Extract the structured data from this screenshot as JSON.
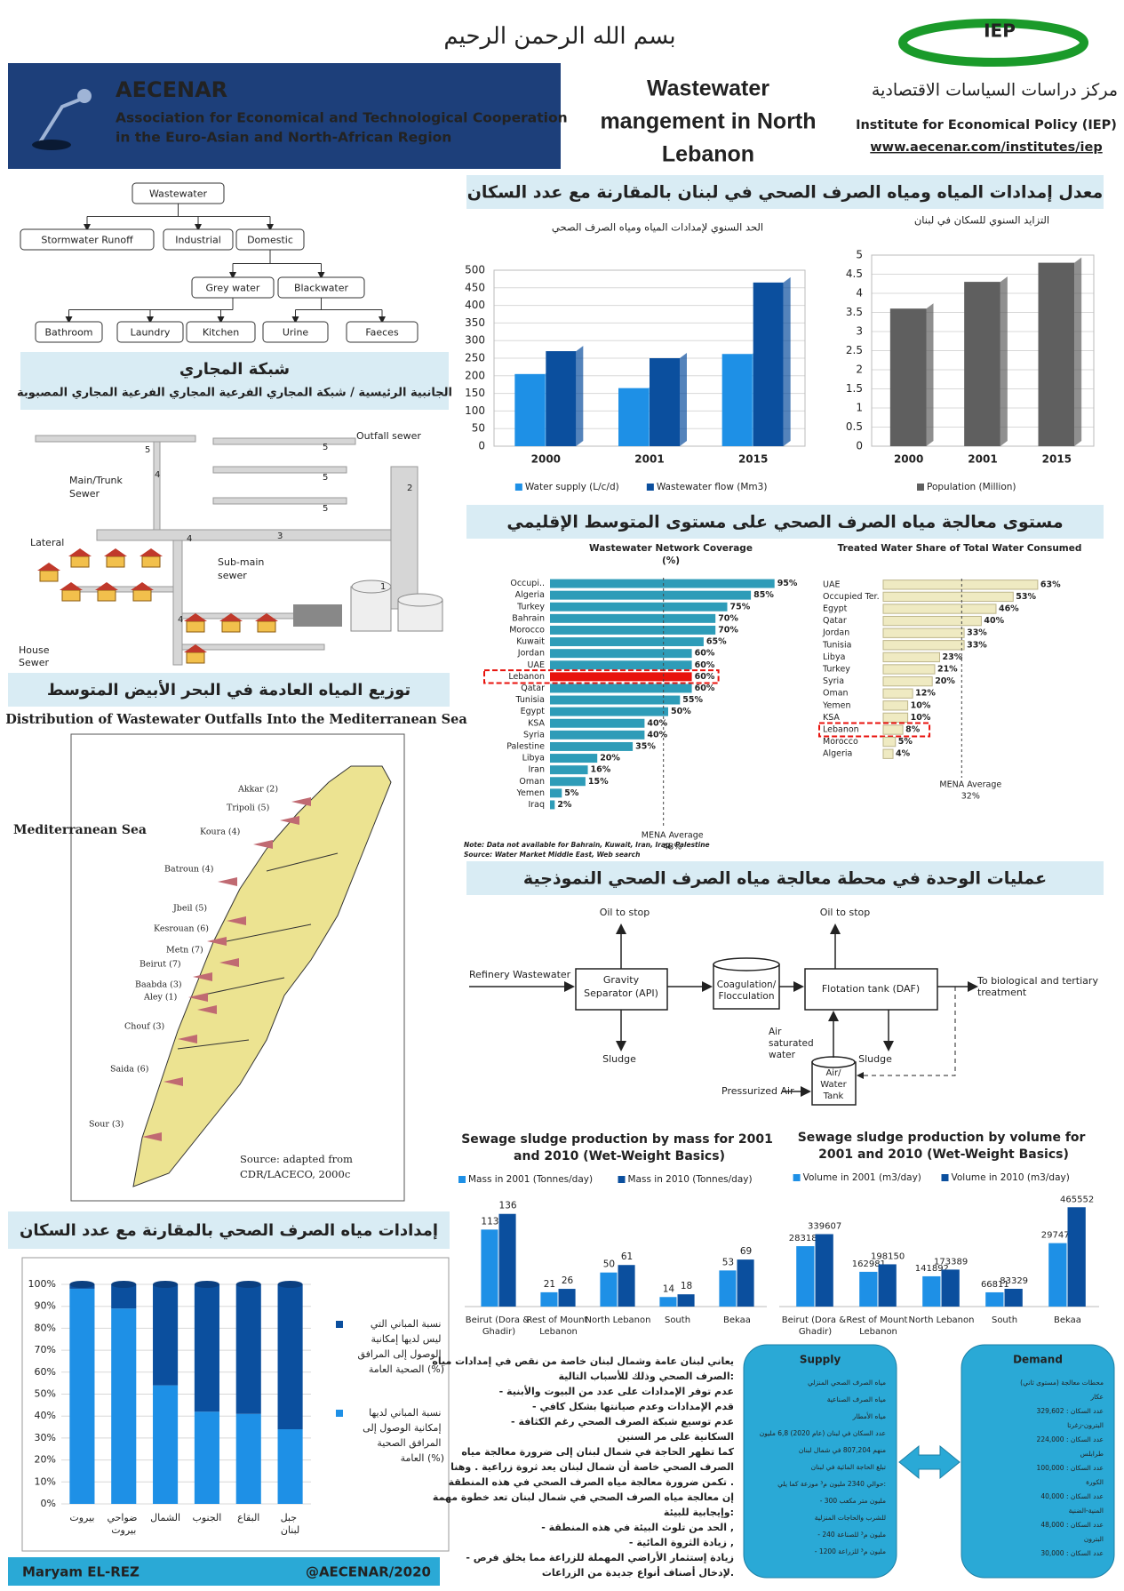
{
  "header": {
    "basmala": "بسم الله الرحمن الرحيم",
    "org_name": "AECENAR",
    "org_full": "Association for Economical and Technological Cooperation",
    "org_full2": "in the Euro-Asian and North-African Region",
    "title": [
      "Wastewater",
      "mangement in North",
      "Lebanon"
    ],
    "iep": "IEP",
    "iep_ar": "مركز دراسات السياسات الاقتصادية",
    "iep_en": "Institute for Economical Policy (IEP)",
    "url": "www.aecenar.com/institutes/iep"
  },
  "sections": {
    "supply_population": "معدل إمدادات المياه ومياه الصرف الصحي في لبنان بالمقارنة مع عدد السكان",
    "treatment_level": "مستوى معالجة مياه الصرف الصحي على مستوى المتوسط الإقليمي",
    "unit_processes": "عمليات الوحدة في محطة معالجة مياه الصرف الصحي النموذجية",
    "sewer_network": "شبكة المجاري",
    "sewer_network_sub": "الجانبية الرئيسية / شبكة المجاري الفرعية المجاري الفرعية المجاري المصبوبة",
    "distribution": "توزيع المياه العادمة في البحر الأبيض المتوسط",
    "access": "إمدادات مياه الصرف الصحي بالمقارنة مع عدد السكان"
  },
  "tree": {
    "nodes": [
      "Wastewater",
      "Stormwater Runoff",
      "Industrial",
      "Domestic",
      "Grey water",
      "Blackwater",
      "Bathroom",
      "Laundry",
      "Kitchen",
      "Urine",
      "Faeces"
    ]
  },
  "sewer": {
    "labels": [
      "Outfall sewer",
      "Main/Trunk",
      "Sewer",
      "Lateral",
      "Sub-main",
      "sewer",
      "House",
      "Sewer"
    ],
    "numbers": [
      "5",
      "5",
      "5",
      "5",
      "4",
      "4",
      "3",
      "2",
      "1",
      "4"
    ]
  },
  "map": {
    "title": "Distribution of Wastewater Outfalls Into the Mediterranean Sea",
    "sea": "Mediterranean Sea",
    "places": [
      "Akkar (2)",
      "Tripoli (5)",
      "Koura (4)",
      "Batroun (4)",
      "Jbeil (5)",
      "Kesrouan (6)",
      "Metn (7)",
      "Beirut (7)",
      "Baabda (3)",
      "Aley (1)",
      "Chouf (3)",
      "Saida (6)",
      "Sour (3)"
    ],
    "source": [
      "Source: adapted from",
      "CDR/LACECO, 2000c"
    ]
  },
  "process": {
    "refinery": "Refinery Wastewater",
    "api": [
      "Gravity",
      "Separator (API)"
    ],
    "coag": [
      "Coagulation/",
      "Flocculation"
    ],
    "daf": "Flotation tank (DAF)",
    "out": [
      "To biological and tertiary",
      "treatment"
    ],
    "oil1": "Oil to stop",
    "oil2": "Oil to stop",
    "sludge1": "Sludge",
    "sludge2": "Sludge",
    "air_water": [
      "Air",
      "saturated",
      "water"
    ],
    "tank": [
      "Air/",
      "Water",
      "Tank"
    ],
    "pressurized": "Pressurized Air"
  },
  "chart_data": [
    {
      "type": "bar",
      "title": "الحد السنوي لإمدادات المياه ومياه الصرف الصحي",
      "categories": [
        "2000",
        "2001",
        "2015"
      ],
      "series": [
        {
          "name": "Water supply (L/c/d)",
          "color": "#1e90e6",
          "values": [
            205,
            165,
            262
          ]
        },
        {
          "name": "Wastewater flow (Mm3)",
          "color": "#0b4f9e",
          "values": [
            270,
            250,
            465
          ]
        }
      ],
      "ylim": [
        0,
        500
      ],
      "yticks": [
        0,
        50,
        100,
        150,
        200,
        250,
        300,
        350,
        400,
        450,
        500
      ],
      "grid": true
    },
    {
      "type": "bar",
      "title": "التزايد السنوي للسكان في لبنان",
      "categories": [
        "2000",
        "2001",
        "2015"
      ],
      "series": [
        {
          "name": "Population (Million)",
          "color": "#5f5f5f",
          "values": [
            3.6,
            4.3,
            4.8
          ]
        }
      ],
      "ylim": [
        0,
        5
      ],
      "yticks": [
        0,
        0.5,
        1,
        1.5,
        2,
        2.5,
        3,
        3.5,
        4,
        4.5,
        5
      ],
      "grid": true
    },
    {
      "type": "hbar",
      "title": "Wastewater Network Coverage",
      "subtitle": "(%)",
      "categories": [
        "Occupi..",
        "Algeria",
        "Turkey",
        "Bahrain",
        "Morocco",
        "Kuwait",
        "Jordan",
        "UAE",
        "Lebanon",
        "Qatar",
        "Tunisia",
        "Egypt",
        "KSA",
        "Syria",
        "Palestine",
        "Libya",
        "Iran",
        "Oman",
        "Yemen",
        "Iraq"
      ],
      "values": [
        95,
        85,
        75,
        70,
        70,
        65,
        60,
        60,
        60,
        60,
        55,
        50,
        40,
        40,
        35,
        20,
        16,
        15,
        5,
        2
      ],
      "value_labels": [
        "95%",
        "85%",
        "75%",
        "70%",
        "70%",
        "65%",
        "60%",
        "60%",
        "60%",
        "60%",
        "55%",
        "50%",
        "40%",
        "40%",
        "35%",
        "20%",
        "16%",
        "15%",
        "5%",
        "2%"
      ],
      "colors": [
        "#2e9cb8",
        "#2e9cb8",
        "#2e9cb8",
        "#2e9cb8",
        "#2e9cb8",
        "#2e9cb8",
        "#2e9cb8",
        "#2e9cb8",
        "#e8120c",
        "#2e9cb8",
        "#2e9cb8",
        "#2e9cb8",
        "#2e9cb8",
        "#2e9cb8",
        "#2e9cb8",
        "#2e9cb8",
        "#2e9cb8",
        "#2e9cb8",
        "#2e9cb8",
        "#2e9cb8"
      ],
      "highlighted_category": "Lebanon",
      "xlim": [
        0,
        100
      ],
      "average": 48,
      "average_label": "MENA Average",
      "average_value_label": "48%",
      "notes": [
        "Note:   Data not available for Bahrain, Kuwait, Iran, Iraq, Palestine",
        "Source:  Water Market Middle East, Web search"
      ]
    },
    {
      "type": "hbar",
      "title": "Treated Water Share of Total Water Consumed",
      "categories": [
        "UAE",
        "Occupied Ter.",
        "Egypt",
        "Qatar",
        "Jordan",
        "Tunisia",
        "Libya",
        "Turkey",
        "Syria",
        "Oman",
        "Yemen",
        "KSA",
        "Lebanon",
        "Morocco",
        "Algeria"
      ],
      "values": [
        63,
        53,
        46,
        40,
        33,
        33,
        23,
        21,
        20,
        12,
        10,
        10,
        8,
        5,
        4
      ],
      "value_labels": [
        "63%",
        "53%",
        "46%",
        "40%",
        "33%",
        "33%",
        "23%",
        "21%",
        "20%",
        "12%",
        "10%",
        "10%",
        "8%",
        "5%",
        "4%"
      ],
      "colors": [
        "#efeac2",
        "#efeac2",
        "#efeac2",
        "#efeac2",
        "#efeac2",
        "#efeac2",
        "#efeac2",
        "#efeac2",
        "#efeac2",
        "#efeac2",
        "#efeac2",
        "#efeac2",
        "#efeac2",
        "#efeac2",
        "#efeac2"
      ],
      "highlighted_category": "Lebanon",
      "xlim": [
        0,
        100
      ],
      "average": 32,
      "average_label": "MENA Average",
      "average_value_label": "32%"
    },
    {
      "type": "bar",
      "title": "Sewage sludge production by mass for 2001 and 2010 (Wet-Weight Basics)",
      "categories": [
        "Beirut (Dora & Ghadir)",
        "Rest of Mount Lebanon",
        "North Lebanon",
        "South",
        "Bekaa"
      ],
      "series": [
        {
          "name": "Mass in 2001 (Tonnes/day)",
          "color": "#1e90e6",
          "values": [
            113,
            21,
            50,
            14,
            53
          ]
        },
        {
          "name": "Mass in 2010 (Tonnes/day)",
          "color": "#0b4f9e",
          "values": [
            136,
            26,
            61,
            18,
            69
          ]
        }
      ],
      "ylim": [
        0,
        150
      ],
      "show_values": true
    },
    {
      "type": "bar",
      "title": "Sewage sludge production by volume for 2001 and 2010 (Wet-Weight Basics)",
      "categories": [
        "Beirut (Dora & Ghadir)",
        "Rest of Mount Lebanon",
        "North Lebanon",
        "South",
        "Bekaa"
      ],
      "series": [
        {
          "name": "Volume in 2001 (m3/day)",
          "color": "#1e90e6",
          "values": [
            283182,
            162981,
            141892,
            66811,
            297472
          ]
        },
        {
          "name": "Volume in 2010 (m3/day)",
          "color": "#0b4f9e",
          "values": [
            339607,
            198150,
            173389,
            83329,
            465552
          ]
        }
      ],
      "ylim": [
        0,
        500000
      ],
      "show_values": true
    },
    {
      "type": "stacked_bar",
      "categories": [
        "بيروت",
        "ضواحي بيروت",
        "الشمال",
        "الجنوب",
        "البقاع",
        "جبل لبنان"
      ],
      "series": [
        {
          "name": "نسبة المباني لديها إمكانية الوصول إلى المرافق الصحية العامة (%)",
          "color": "#1e90e6",
          "values": [
            98,
            89,
            54,
            42,
            41,
            34
          ]
        },
        {
          "name": "نسبة المباني التي ليس لديها إمكانية الوصول إلى المرافق الصحية العامة (%)",
          "color": "#0b4f9e",
          "values": [
            2,
            11,
            46,
            58,
            59,
            66
          ]
        }
      ],
      "ylim": [
        0,
        100
      ],
      "yticks": [
        {
          "value": 0,
          "label": "0%"
        },
        {
          "value": 10,
          "label": "10%"
        },
        {
          "value": 20,
          "label": "20%"
        },
        {
          "value": 30,
          "label": "30%"
        },
        {
          "value": 40,
          "label": "40%"
        },
        {
          "value": 50,
          "label": "50%"
        },
        {
          "value": 60,
          "label": "60%"
        },
        {
          "value": 70,
          "label": "70%"
        },
        {
          "value": 80,
          "label": "80%"
        },
        {
          "value": 90,
          "label": "90%"
        },
        {
          "value": 100,
          "label": "100%"
        }
      ],
      "grid": true
    }
  ],
  "text_block": {
    "lines": [
      "يعاني لبنان عامة وشمال لبنان خاصة من نقص في إمدادات مياه",
      "الصرف الصحي وذلك للأسباب التالية:",
      "- عدم توفر الإمدادات على عدد من البيوت والأبنية",
      "- قدم الإمدادات وعدم صيانتها بشكل كافي",
      "- عدم توسيع شبكة الصرف الصحي رغم الكثافة",
      "السكانية على مر السنين",
      "كما تظهر الحاجة في شمال لبنان إلى ضرورة معالجة مياه",
      "الصرف الصحي خاصة أن شمال لبنان يعد ثروة زراعية . وهنا",
      "تكمن ضرورة معالجة مياه الصرف الصحي في هذه المنطقة .",
      "إن معالجة مياه الصرف الصحي في شمال لبنان تعد خطوة مهمة",
      "وإيجابية للبيئة:",
      "- الحد من تلوث البيئة في هذه المنطقة ,",
      "- زيادة الثروة المائية ,",
      "- زيادة إستثمار الأراضي المهملة للزراعة مما يخلق فرص",
      "لإدخال أصناف أنواع جديدة من الزراعات."
    ]
  },
  "supply": {
    "title": "Supply",
    "items": [
      "مياه الصرف الصحي المنزلي",
      "مياه الصرف الصناعية",
      "مياه الأمطار",
      "عدد السكان في لبنان (عام 2020) 6,8 مليون",
      "منهم 807,204 في شمال لبنان",
      "تبلغ الحاجة المائية في لبنان",
      "حوالي 2340 مليون م³ موزعة كما يلي:",
      "- 300 مليون متر مكعب",
      "للشرب والحاجات المنزلية",
      "- 240 مليون م³ للصناعة",
      "- 1200 مليون م³ للزراعة"
    ]
  },
  "demand": {
    "title": "Demand",
    "items": [
      "محطات معالجة (مستوى ثاني)",
      "عكار",
      "عدد السكان : 329,602",
      "البترون-زغرتا",
      "عدد السكان : 224,000",
      "طرابلس",
      "عدد السكان : 100,000",
      "الكورة",
      "عدد السكان : 40,000",
      "المنية-الضنية",
      "عدد السكان : 48,000",
      "البترون",
      "عدد السكان : 30,000"
    ]
  },
  "footer": {
    "author": "Maryam EL-REZ",
    "handle": "@AECENAR/2020"
  }
}
